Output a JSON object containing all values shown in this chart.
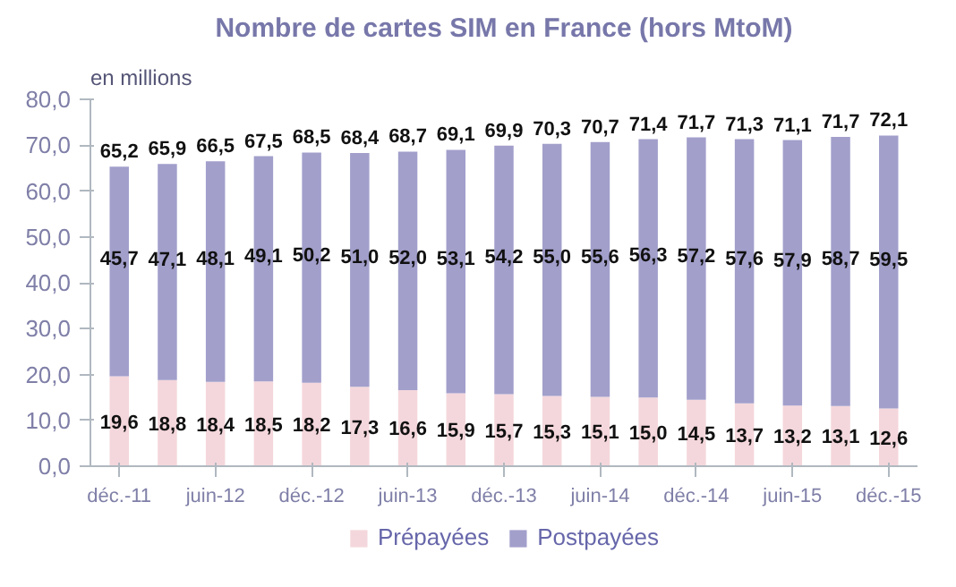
{
  "chart_data": {
    "type": "bar",
    "title": "Nombre de cartes SIM en France (hors MtoM)",
    "ylabel": "en millions",
    "categories": [
      "déc.-11",
      null,
      "juin-12",
      null,
      "déc.-12",
      null,
      "juin-13",
      null,
      "déc.-13",
      null,
      "juin-14",
      null,
      "déc.-14",
      null,
      "juin-15",
      null,
      "déc.-15"
    ],
    "stacked": true,
    "series": [
      {
        "name": "Prépayées",
        "color": "#f4d7dc",
        "values": [
          19.6,
          18.8,
          18.4,
          18.5,
          18.2,
          17.3,
          16.6,
          15.9,
          15.7,
          15.3,
          15.1,
          15.0,
          14.5,
          13.7,
          13.2,
          13.1,
          12.6
        ],
        "value_labels": [
          "19,6",
          "18,8",
          "18,4",
          "18,5",
          "18,2",
          "17,3",
          "16,6",
          "15,9",
          "15,7",
          "15,3",
          "15,1",
          "15,0",
          "14,5",
          "13,7",
          "13,2",
          "13,1",
          "12,6"
        ]
      },
      {
        "name": "Postpayées",
        "color": "#a29fcb",
        "values": [
          45.7,
          47.1,
          48.1,
          49.1,
          50.2,
          51.0,
          52.0,
          53.1,
          54.2,
          55.0,
          55.6,
          56.3,
          57.2,
          57.6,
          57.9,
          58.7,
          59.5
        ],
        "value_labels": [
          "45,7",
          "47,1",
          "48,1",
          "49,1",
          "50,2",
          "51,0",
          "52,0",
          "53,1",
          "54,2",
          "55,0",
          "55,6",
          "56,3",
          "57,2",
          "57,6",
          "57,9",
          "58,7",
          "59,5"
        ]
      }
    ],
    "totals": [
      "65,2",
      "65,9",
      "66,5",
      "67,5",
      "68,5",
      "68,4",
      "68,7",
      "69,1",
      "69,9",
      "70,3",
      "70,7",
      "71,4",
      "71,7",
      "71,3",
      "71,1",
      "71,7",
      "72,1"
    ],
    "ylim": [
      0,
      80
    ],
    "yticks": [
      {
        "value": 0,
        "label": "0,0"
      },
      {
        "value": 10,
        "label": "10,0"
      },
      {
        "value": 20,
        "label": "20,0"
      },
      {
        "value": 30,
        "label": "30,0"
      },
      {
        "value": 40,
        "label": "40,0"
      },
      {
        "value": 50,
        "label": "50,0"
      },
      {
        "value": 60,
        "label": "60,0"
      },
      {
        "value": 70,
        "label": "70,0"
      },
      {
        "value": 80,
        "label": "80,0"
      }
    ],
    "grid": false,
    "legend": "bottom"
  }
}
